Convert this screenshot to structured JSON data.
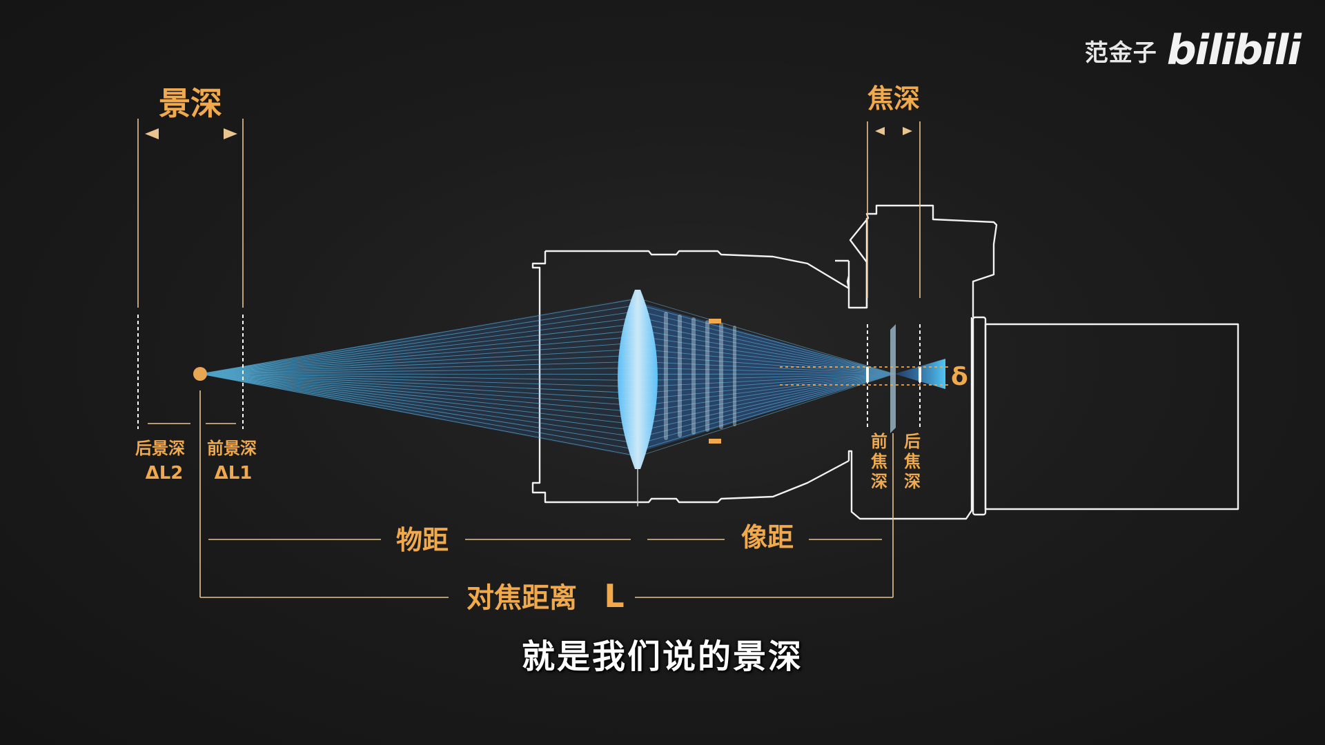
{
  "watermark": {
    "author": "范金子",
    "logo": "bilibili"
  },
  "subtitle": "就是我们说的景深",
  "diagram": {
    "depth_of_field": "景深",
    "depth_of_focus": "焦深",
    "rear_dof": "后景深",
    "rear_dof_symbol": "ΔL2",
    "front_dof": "前景深",
    "front_dof_symbol": "ΔL1",
    "object_distance": "物距",
    "image_distance": "像距",
    "focus_distance": "对焦距离",
    "focus_distance_symbol": "L",
    "front_focus_depth": [
      "前",
      "焦",
      "深"
    ],
    "rear_focus_depth": [
      "后",
      "焦",
      "深"
    ],
    "delta": "δ"
  },
  "colors": {
    "accent": "#f0a94c",
    "ray": "#3ab8ff",
    "outline": "#f2f2f2",
    "lens": "#9fdcff"
  }
}
